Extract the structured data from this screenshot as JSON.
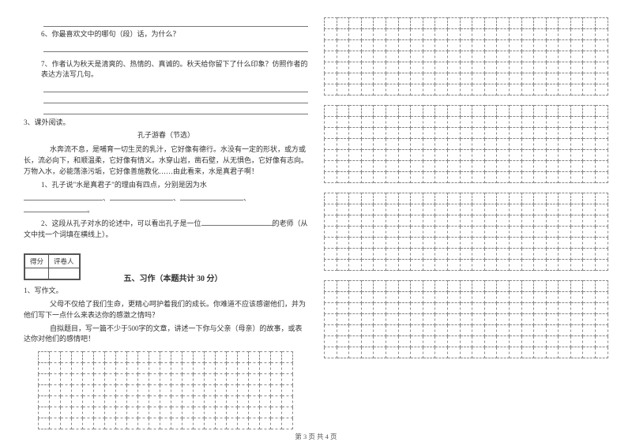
{
  "left": {
    "q6": "6、你最喜欢文中的哪句（段）话，为什么？",
    "q7": "7、作者认为秋天是清爽的、热情的、真诚的。秋天给你留下了什么印象？仿照作者的表达方法写几句。",
    "p3_title": "3、课外阅读。",
    "p3_sub": "孔子游春（节选）",
    "p3_body": "水奔流不息，是哺育一切生灵的乳汁，它好像有德行。水没有一定的形状，或方或长，流必向下，和顺温柔，它好像有情义。水穿山岩，凿石壁，从无惧色，它好像有志向。万物入水，必能荡涤污垢，它好像善施教化……由此看来，水是真君子啊！",
    "p3_q1_a": "1、孔子说\"水是真君子\"的理由有四点，分别是因为水",
    "p3_q1_b": "。",
    "p3_q2_a": "2、这段从孔子对水的论述中，可以看出孔子是一位",
    "p3_q2_b": "的老师（从文中找一个词填在横线上）。",
    "score_h1": "得分",
    "score_h2": "评卷人",
    "section5": "五、习作（本题共计 30 分）",
    "w1": "1、写作文。",
    "w1_body1": "父母不仅给了我们生命，更精心呵护着我们的成长。你难道不应该感谢他们，并为他们写下一点什么来表达你的感激之情吗？",
    "w1_body2": "自拟题目，写一篇不少于500字的文章，讲述一下你与父亲（母亲）的故事，或表达你对他们的感情吧！"
  },
  "footer": "第 3 页 共 4 页",
  "grid": {
    "left_cols": 23,
    "left_rows": 7,
    "right_cols": 23,
    "right_block_rows": 7,
    "right_blocks": 4
  },
  "style": {
    "text_color": "#333333",
    "line_color": "#777777",
    "grid_color": "#888888",
    "bg": "#ffffff"
  }
}
